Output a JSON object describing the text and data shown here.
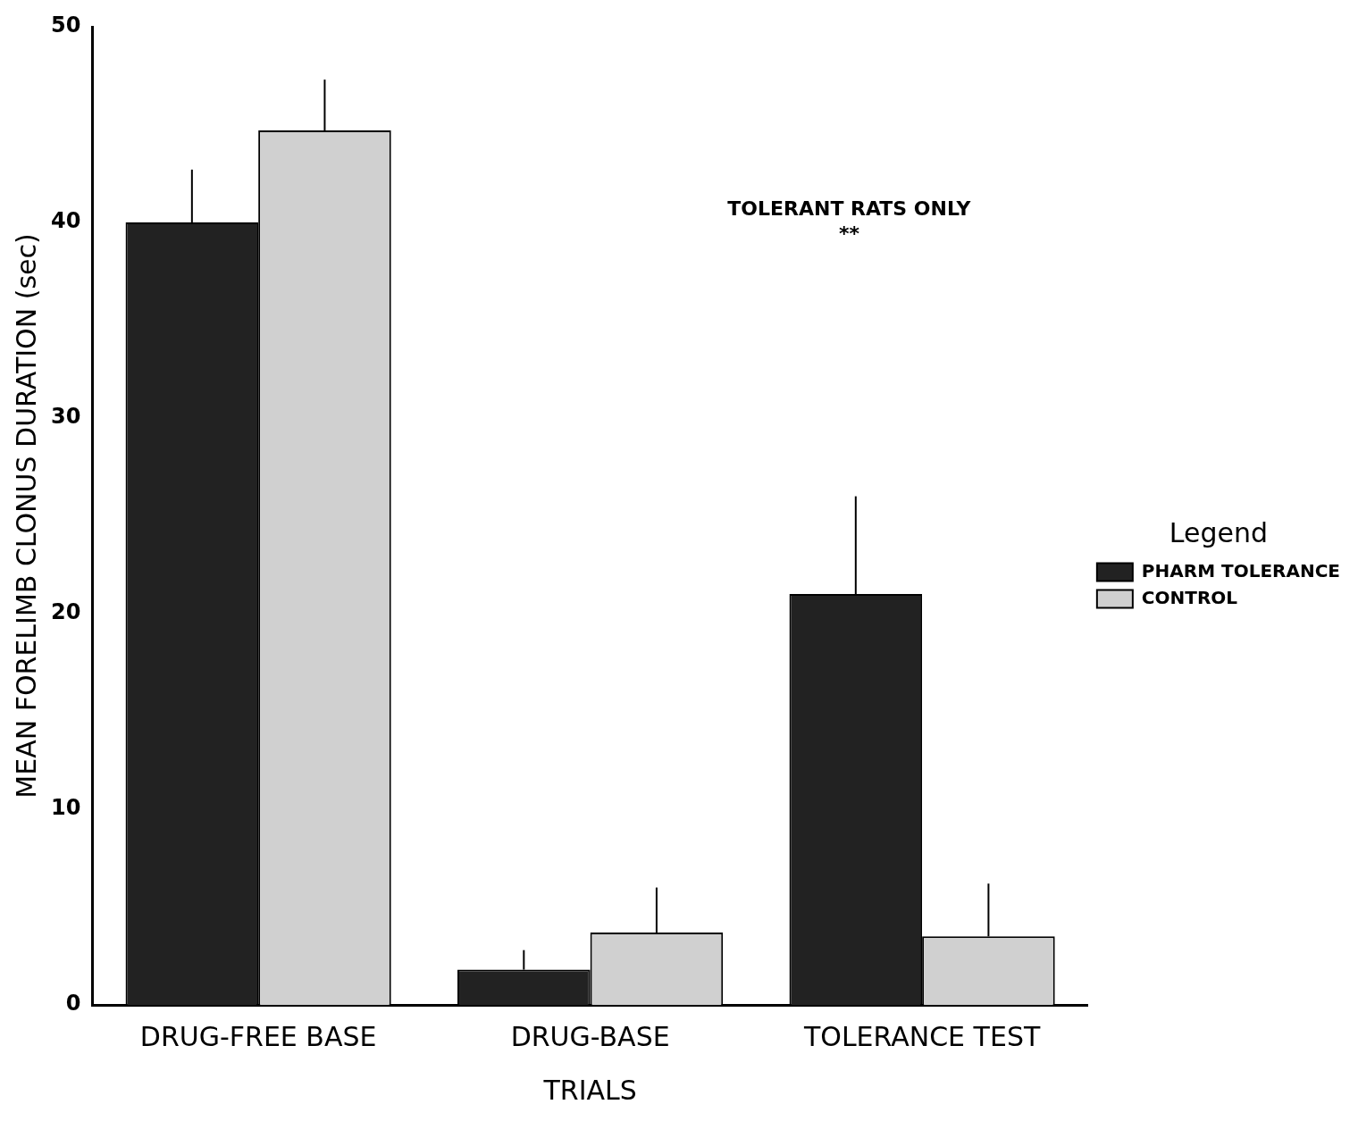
{
  "chart_data": {
    "type": "bar",
    "xlabel": "TRIALS",
    "ylabel": "MEAN FORELIMB CLONUS DURATION (sec)",
    "legend_title": "Legend",
    "categories": [
      "DRUG-FREE BASE",
      "DRUG-BASE",
      "TOLERANCE TEST"
    ],
    "series": [
      {
        "name": "PHARM TOLERANCE",
        "color": "#222222",
        "values": [
          40,
          1.8,
          21
        ],
        "errors": [
          [
            40,
            42.7
          ],
          [
            1.8,
            2.8
          ],
          [
            21,
            26
          ]
        ]
      },
      {
        "name": "CONTROL",
        "color": "#d0d0d0",
        "values": [
          44.7,
          3.7,
          3.5
        ],
        "errors": [
          [
            44.7,
            47.3
          ],
          [
            3.7,
            6
          ],
          [
            3.5,
            6.2
          ]
        ]
      }
    ],
    "ylim": [
      0,
      50
    ],
    "yticks": [
      0,
      10,
      20,
      30,
      40,
      50
    ],
    "grid": false,
    "legend": "right",
    "annotations": [
      "TOLERANT RATS ONLY",
      "**"
    ]
  }
}
